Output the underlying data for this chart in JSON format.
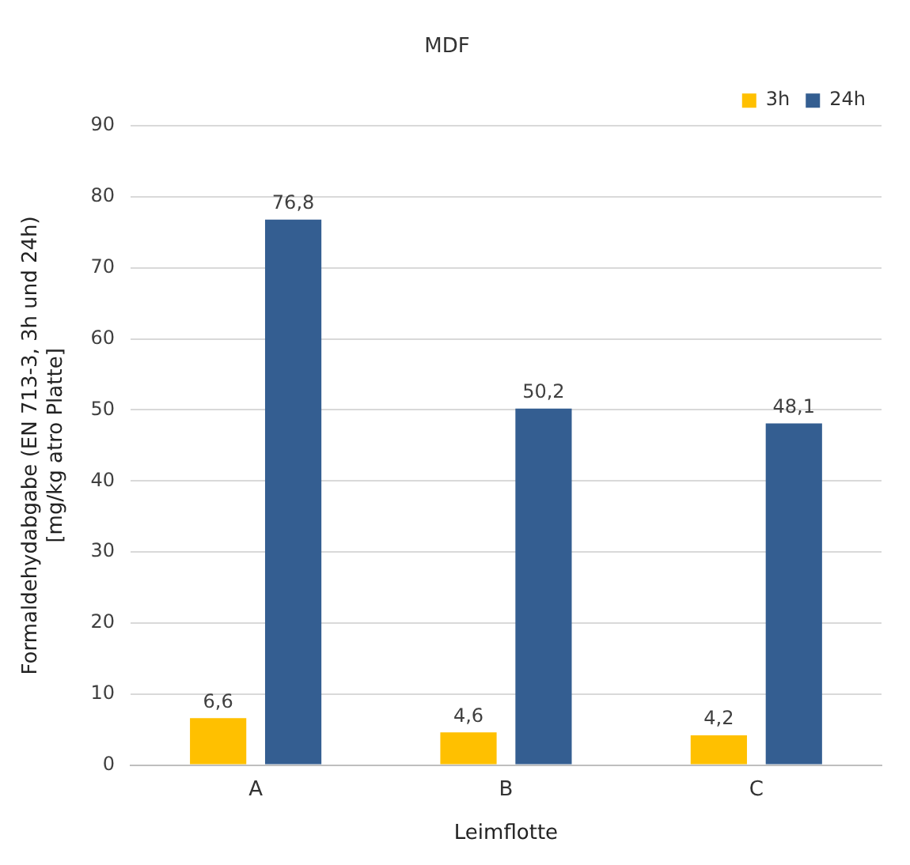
{
  "chart_data": {
    "type": "bar",
    "title": "MDF",
    "xlabel": "Leimflotte",
    "ylabel": "Formaldehydabgabe (EN 713-3, 3h und 24h)\n[mg/kg atro Platte]",
    "categories": [
      "A",
      "B",
      "C"
    ],
    "series": [
      {
        "name": "3h",
        "color": "#ffc000",
        "values": [
          6.6,
          4.6,
          4.2
        ],
        "value_labels": [
          "6,6",
          "4,6",
          "4,2"
        ]
      },
      {
        "name": "24h",
        "color": "#345e91",
        "values": [
          76.8,
          50.2,
          48.1
        ],
        "value_labels": [
          "76,8",
          "50,2",
          "48,1"
        ]
      }
    ],
    "ylim": [
      0,
      90
    ],
    "yticks": [
      0,
      10,
      20,
      30,
      40,
      50,
      60,
      70,
      80,
      90
    ],
    "grid": "y",
    "legend": "top right"
  }
}
